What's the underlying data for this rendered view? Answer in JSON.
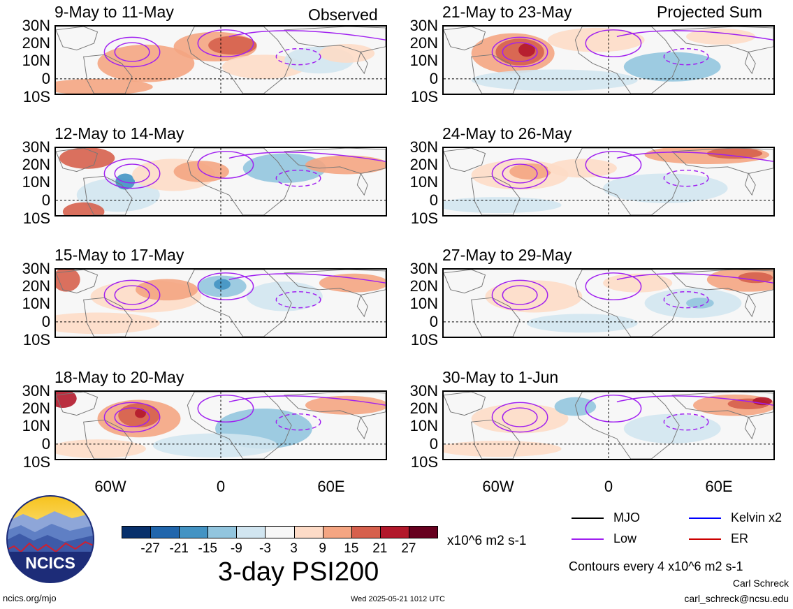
{
  "labels": {
    "observed": "Observed",
    "projected": "Projected Sum",
    "lat_ticks": [
      "30N",
      "20N",
      "10N",
      "0",
      "10S"
    ],
    "lon_ticks": [
      "60W",
      "0",
      "60E"
    ],
    "units": "x10^6 m2 s-1",
    "main_title": "3-day PSI200",
    "contours": "Contours every 4 x10^6 m2 s-1",
    "author": "Carl Schreck",
    "email": "carl_schreck@ncsu.edu",
    "url": "ncics.org/mjo",
    "timestamp": "Wed 2025-05-21 1012 UTC",
    "logo_text": "NCICS"
  },
  "panels_left": [
    {
      "title": "9-May to 11-May"
    },
    {
      "title": "12-May to 14-May"
    },
    {
      "title": "15-May to 17-May"
    },
    {
      "title": "18-May to 20-May"
    }
  ],
  "panels_right": [
    {
      "title": "21-May to 23-May"
    },
    {
      "title": "24-May to 26-May"
    },
    {
      "title": "27-May to 29-May"
    },
    {
      "title": "30-May to 1-Jun"
    }
  ],
  "colorbar": {
    "colors": [
      "#08306b",
      "#2166ac",
      "#4393c3",
      "#92c5de",
      "#d1e5f0",
      "#f7f7f7",
      "#fddbc7",
      "#f4a582",
      "#d6604d",
      "#b2182b",
      "#67001f"
    ],
    "ticks": [
      "-27",
      "-21",
      "-15",
      "-9",
      "-3",
      "3",
      "9",
      "15",
      "21",
      "27"
    ]
  },
  "legend": [
    {
      "label": "MJO",
      "color": "#000000"
    },
    {
      "label": "Kelvin x2",
      "color": "#0000ff"
    },
    {
      "label": "Low",
      "color": "#a020f0"
    },
    {
      "label": "ER",
      "color": "#cc0000"
    }
  ]
}
